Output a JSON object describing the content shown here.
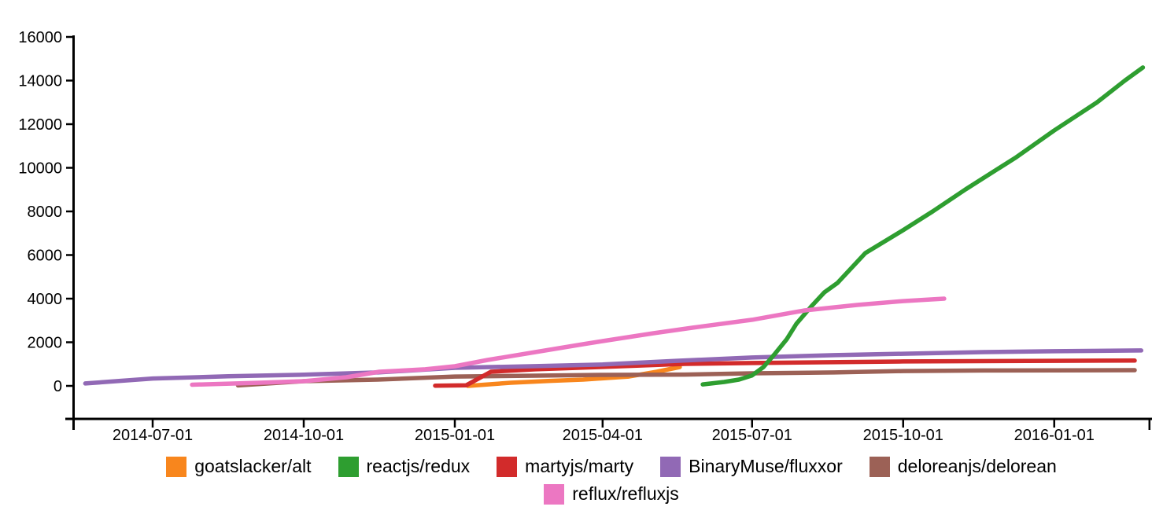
{
  "chart_data": {
    "type": "line",
    "title": "",
    "xlabel": "",
    "ylabel": "",
    "grid": false,
    "legend_position": "bottom",
    "axis_color": "#000000",
    "x_axis": {
      "tick_labels": [
        "2014-07-01",
        "2014-10-01",
        "2015-01-01",
        "2015-04-01",
        "2015-07-01",
        "2015-10-01",
        "2016-01-01"
      ],
      "domain_start": "2014-05-14",
      "domain_end": "2016-02-28"
    },
    "y_axis": {
      "tick_values": [
        0,
        2000,
        4000,
        6000,
        8000,
        10000,
        12000,
        14000,
        16000
      ],
      "tick_labels": [
        "0",
        "2000",
        "4000",
        "6000",
        "8000",
        "10000",
        "12000",
        "14000",
        "16000"
      ],
      "range": [
        0,
        16000
      ]
    },
    "series": [
      {
        "name": "goatslacker/alt",
        "color": "#F8861D",
        "points": [
          [
            "2015-01-09",
            0
          ],
          [
            "2015-02-04",
            145
          ],
          [
            "2015-02-28",
            230
          ],
          [
            "2015-03-20",
            290
          ],
          [
            "2015-04-17",
            430
          ],
          [
            "2015-05-04",
            650
          ],
          [
            "2015-05-18",
            865
          ]
        ]
      },
      {
        "name": "reactjs/redux",
        "color": "#2E9E30",
        "points": [
          [
            "2015-06-01",
            70
          ],
          [
            "2015-06-14",
            180
          ],
          [
            "2015-06-23",
            290
          ],
          [
            "2015-07-01",
            480
          ],
          [
            "2015-07-08",
            865
          ],
          [
            "2015-07-15",
            1480
          ],
          [
            "2015-07-22",
            2130
          ],
          [
            "2015-07-28",
            2850
          ],
          [
            "2015-08-06",
            3640
          ],
          [
            "2015-08-14",
            4290
          ],
          [
            "2015-08-22",
            4720
          ],
          [
            "2015-09-08",
            6090
          ],
          [
            "2015-10-01",
            7140
          ],
          [
            "2015-10-19",
            8000
          ],
          [
            "2015-11-08",
            9010
          ],
          [
            "2015-12-09",
            10490
          ],
          [
            "2016-01-01",
            11710
          ],
          [
            "2016-01-27",
            13000
          ],
          [
            "2016-02-13",
            14000
          ],
          [
            "2016-02-24",
            14600
          ]
        ]
      },
      {
        "name": "martyjs/marty",
        "color": "#D22B2B",
        "points": [
          [
            "2014-12-20",
            10
          ],
          [
            "2015-01-08",
            30
          ],
          [
            "2015-01-23",
            650
          ],
          [
            "2015-02-19",
            760
          ],
          [
            "2015-04-01",
            870
          ],
          [
            "2015-05-21",
            1010
          ],
          [
            "2015-07-01",
            1050
          ],
          [
            "2015-10-01",
            1120
          ],
          [
            "2016-01-01",
            1150
          ],
          [
            "2016-02-19",
            1160
          ]
        ]
      },
      {
        "name": "BinaryMuse/fluxxor",
        "color": "#9169B5",
        "points": [
          [
            "2014-05-21",
            110
          ],
          [
            "2014-07-01",
            340
          ],
          [
            "2014-08-16",
            440
          ],
          [
            "2014-10-01",
            510
          ],
          [
            "2014-11-15",
            615
          ],
          [
            "2015-01-01",
            830
          ],
          [
            "2015-02-19",
            905
          ],
          [
            "2015-04-01",
            980
          ],
          [
            "2015-05-16",
            1150
          ],
          [
            "2015-07-01",
            1300
          ],
          [
            "2015-08-20",
            1410
          ],
          [
            "2015-10-01",
            1475
          ],
          [
            "2015-11-19",
            1550
          ],
          [
            "2016-01-01",
            1590
          ],
          [
            "2016-02-23",
            1625
          ]
        ]
      },
      {
        "name": "deloreanjs/delorean",
        "color": "#9C6156",
        "points": [
          [
            "2014-08-22",
            20
          ],
          [
            "2014-10-01",
            215
          ],
          [
            "2014-11-15",
            290
          ],
          [
            "2015-01-01",
            430
          ],
          [
            "2015-02-19",
            470
          ],
          [
            "2015-04-01",
            505
          ],
          [
            "2015-05-21",
            520
          ],
          [
            "2015-07-01",
            575
          ],
          [
            "2015-08-20",
            615
          ],
          [
            "2015-10-01",
            680
          ],
          [
            "2015-11-19",
            705
          ],
          [
            "2016-01-01",
            715
          ],
          [
            "2016-02-19",
            720
          ]
        ]
      },
      {
        "name": "reflux/refluxjs",
        "color": "#EC77C2",
        "points": [
          [
            "2014-07-25",
            55
          ],
          [
            "2014-09-04",
            145
          ],
          [
            "2014-10-01",
            215
          ],
          [
            "2014-10-27",
            395
          ],
          [
            "2014-11-16",
            650
          ],
          [
            "2014-12-14",
            760
          ],
          [
            "2015-01-01",
            900
          ],
          [
            "2015-01-21",
            1190
          ],
          [
            "2015-02-19",
            1550
          ],
          [
            "2015-03-20",
            1910
          ],
          [
            "2015-04-01",
            2055
          ],
          [
            "2015-05-02",
            2415
          ],
          [
            "2015-05-26",
            2670
          ],
          [
            "2015-07-01",
            3030
          ],
          [
            "2015-08-02",
            3460
          ],
          [
            "2015-09-03",
            3710
          ],
          [
            "2015-10-01",
            3890
          ],
          [
            "2015-10-26",
            4000
          ]
        ]
      }
    ],
    "draw_order": [
      "goatslacker/alt",
      "deloreanjs/delorean",
      "martyjs/marty",
      "BinaryMuse/fluxxor",
      "reactjs/redux",
      "reflux/refluxjs"
    ]
  }
}
